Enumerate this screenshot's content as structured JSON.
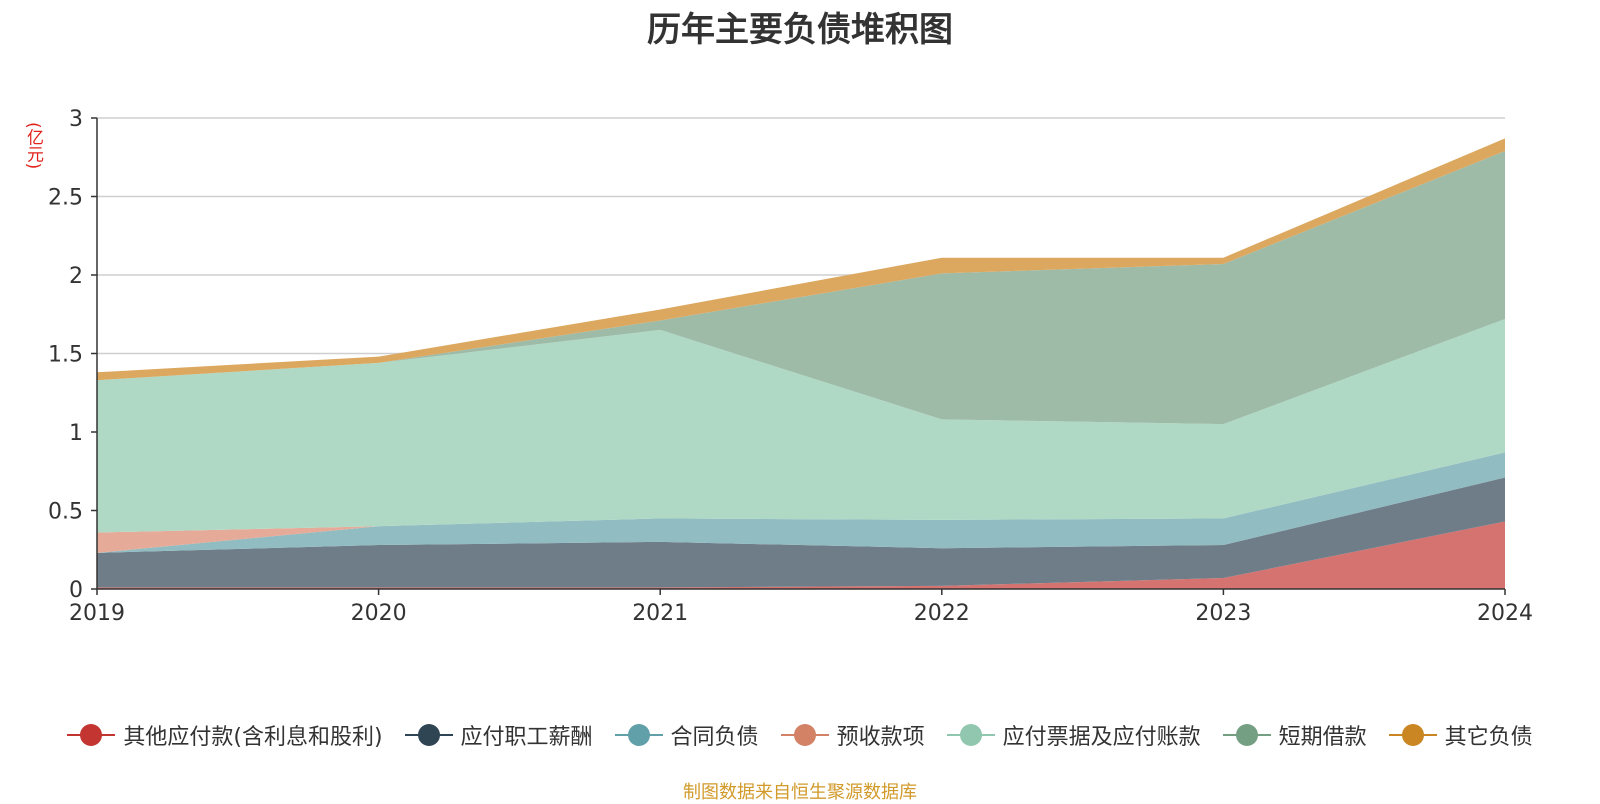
{
  "chart_data": {
    "type": "area",
    "stacked": true,
    "title": "历年主要负债堆积图",
    "unit_label": "(亿元)",
    "source_note": "制图数据来自恒生聚源数据库",
    "x": [
      "2019",
      "2020",
      "2021",
      "2022",
      "2023",
      "2024"
    ],
    "ylim": [
      0,
      3
    ],
    "yticks": [
      "0",
      "0.5",
      "1",
      "1.5",
      "2",
      "2.5",
      "3"
    ],
    "grid": true,
    "legend_position": "bottom",
    "series": [
      {
        "name": "其他应付款(含利息和股利)",
        "color": "#c23531",
        "area_color": "#d47370",
        "values": [
          0.01,
          0.01,
          0.01,
          0.02,
          0.07,
          0.43
        ]
      },
      {
        "name": "应付职工薪酬",
        "color": "#2f4554",
        "area_color": "#6f7d88",
        "values": [
          0.22,
          0.27,
          0.29,
          0.24,
          0.21,
          0.28
        ]
      },
      {
        "name": "合同负债",
        "color": "#61a0a8",
        "area_color": "#90bcc2",
        "values": [
          0.0,
          0.12,
          0.15,
          0.18,
          0.17,
          0.16
        ]
      },
      {
        "name": "预收款项",
        "color": "#d48265",
        "area_color": "#e5ab98",
        "values": [
          0.13,
          0.0,
          0.0,
          0.0,
          0.0,
          0.0
        ]
      },
      {
        "name": "应付票据及应付账款",
        "color": "#91c7ae",
        "area_color": "#b0d9c5",
        "values": [
          0.97,
          1.04,
          1.2,
          0.64,
          0.6,
          0.85
        ]
      },
      {
        "name": "短期借款",
        "color": "#749f83",
        "area_color": "#9ebba8",
        "values": [
          0.0,
          0.0,
          0.06,
          0.93,
          1.02,
          1.07
        ]
      },
      {
        "name": "其它负债",
        "color": "#ca8622",
        "area_color": "#dca860",
        "values": [
          0.05,
          0.04,
          0.07,
          0.1,
          0.04,
          0.08
        ]
      }
    ]
  }
}
